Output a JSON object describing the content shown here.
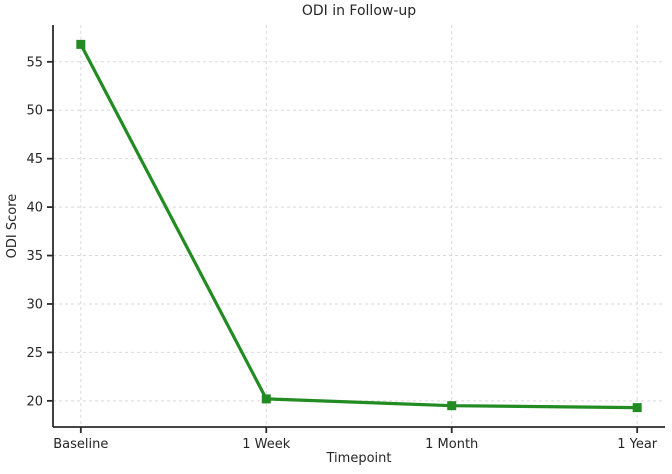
{
  "chart_data": {
    "type": "line",
    "title": "ODI in Follow-up",
    "xlabel": "Timepoint",
    "ylabel": "ODI Score",
    "categories": [
      "Baseline",
      "1 Week",
      "1 Month",
      "1 Year"
    ],
    "series": [
      {
        "name": "ODI Score",
        "values": [
          56.8,
          20.2,
          19.5,
          19.3
        ]
      }
    ],
    "ylim": [
      17.3,
      58.8
    ],
    "yticks": [
      20,
      25,
      30,
      35,
      40,
      45,
      50,
      55
    ],
    "grid": true,
    "grid_style": "dashed",
    "legend_position": "none",
    "marker": "square",
    "line_color": "#228B22",
    "marker_color": "#228B22",
    "grid_color": "#d9d9d9",
    "axis_color": "#2b2b2b",
    "text_color": "#262626",
    "background_color": "#ffffff"
  }
}
